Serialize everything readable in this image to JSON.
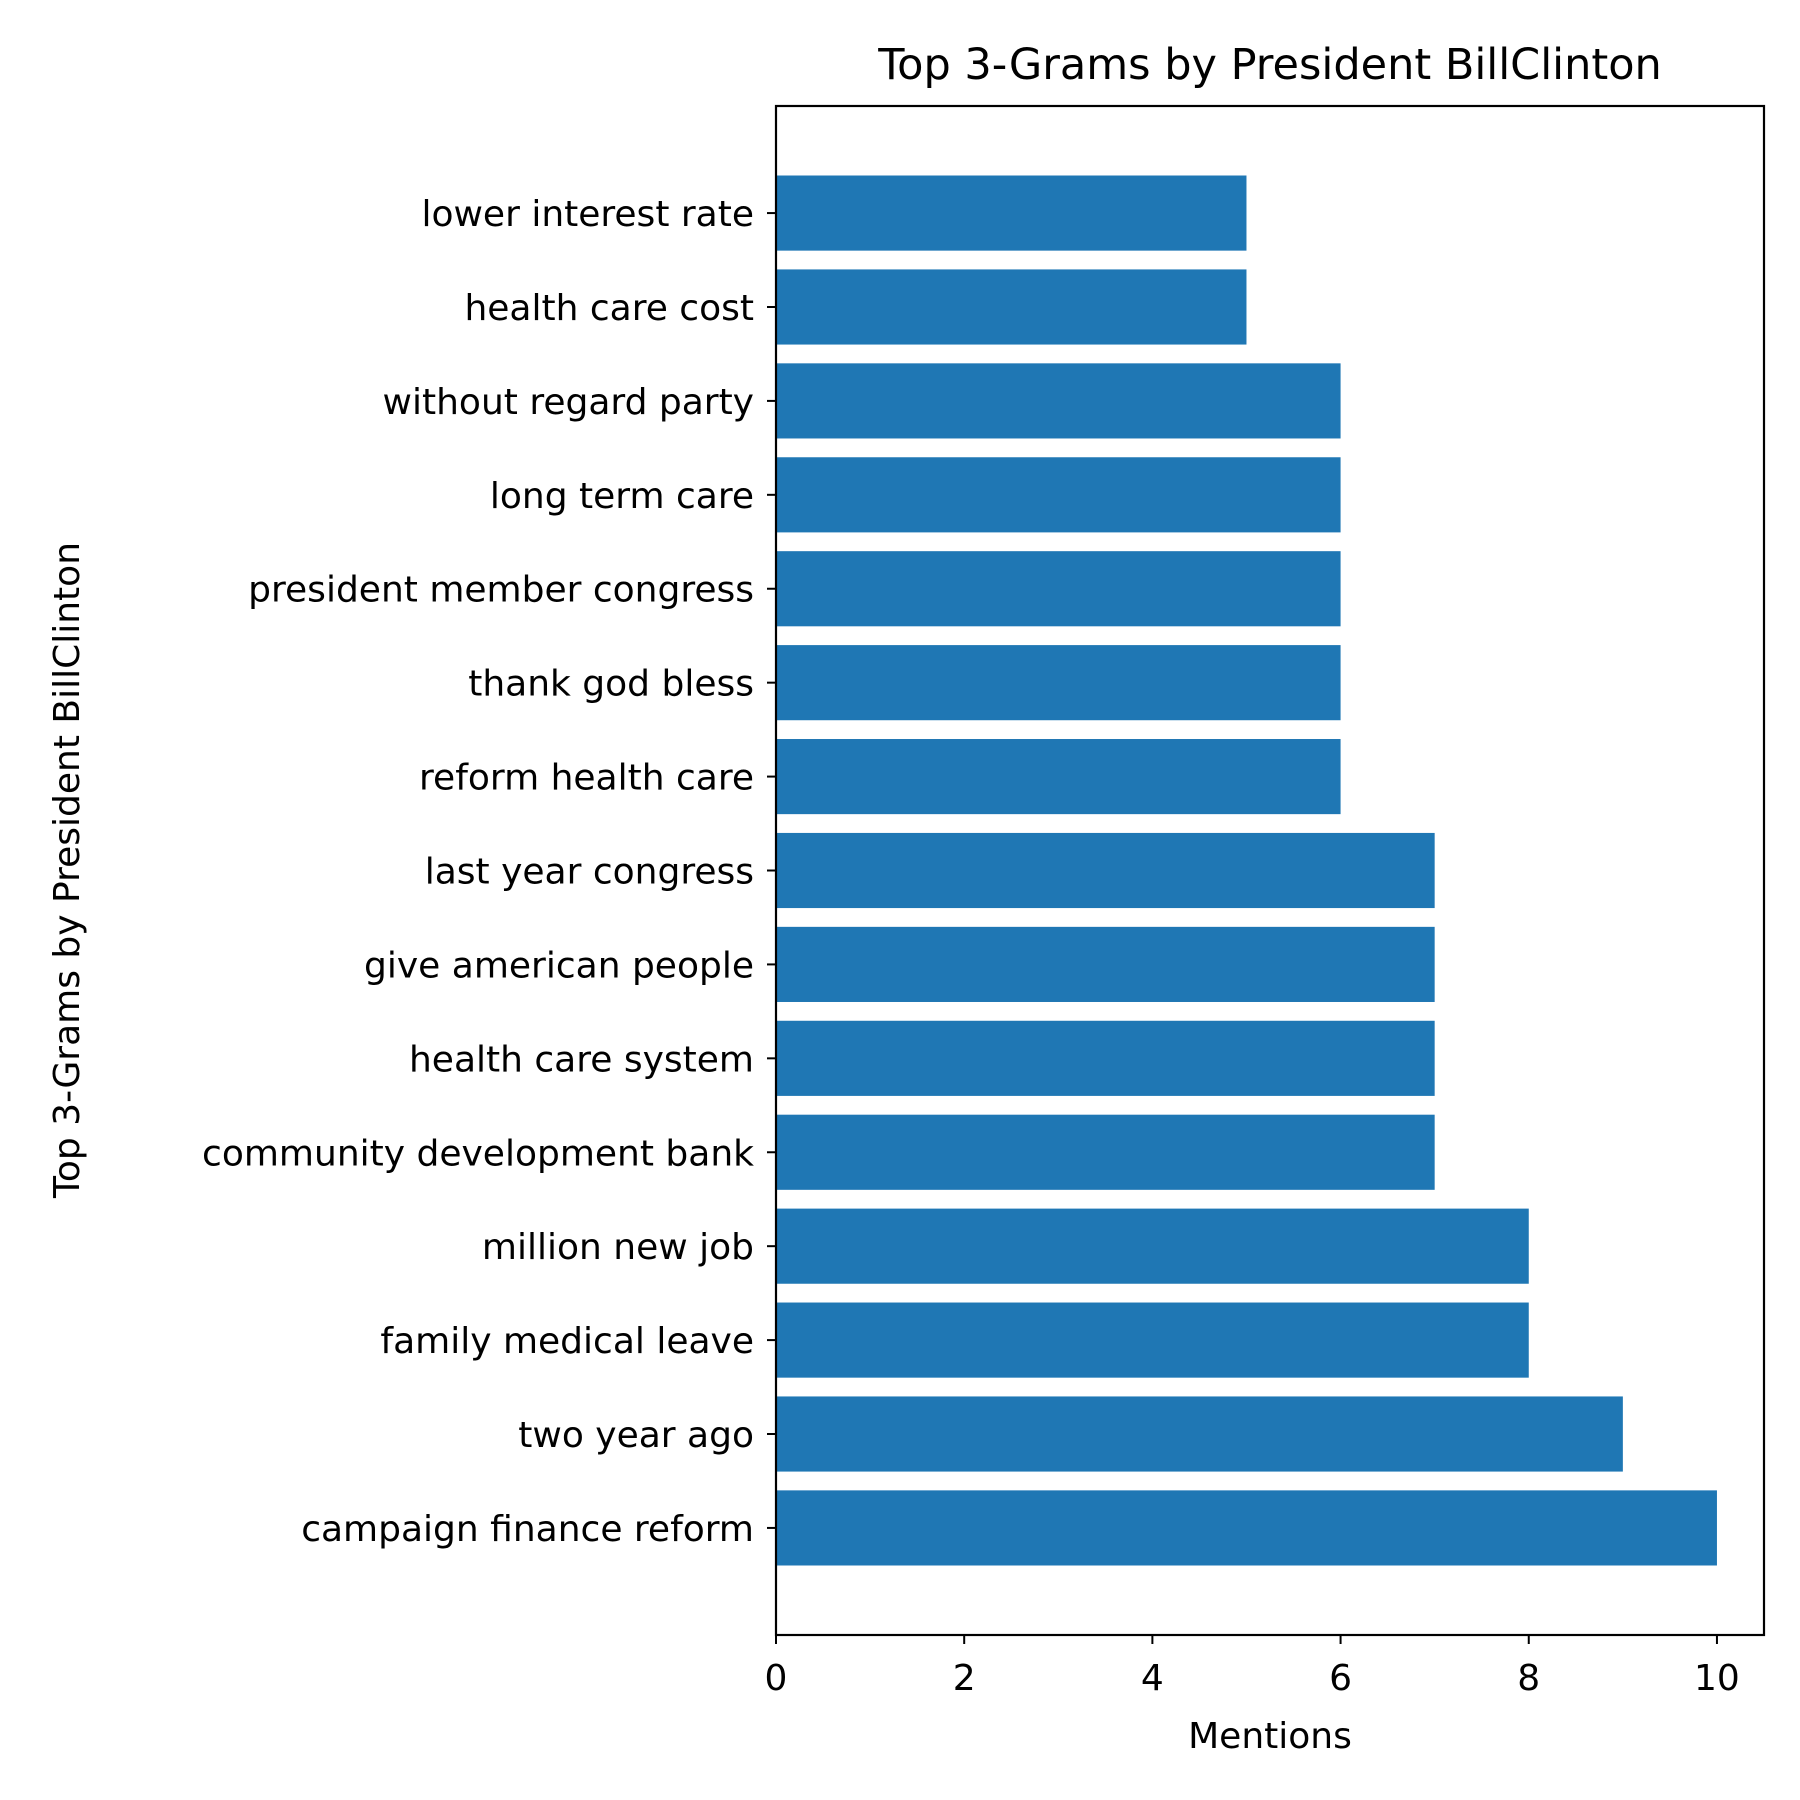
{
  "chart_data": {
    "type": "bar",
    "orientation": "horizontal",
    "title": "Top 3-Grams by President BillClinton",
    "xlabel": "Mentions",
    "ylabel": "Top 3-Grams by President BillClinton",
    "xlim": [
      0,
      10.5
    ],
    "xticks": [
      0,
      2,
      4,
      6,
      8,
      10
    ],
    "grid": false,
    "bar_color": "#1f77b4",
    "categories": [
      "campaign finance reform",
      "two year ago",
      "family medical leave",
      "million new job",
      "community development bank",
      "health care system",
      "give american people",
      "last year congress",
      "reform health care",
      "thank god bless",
      "president member congress",
      "long term care",
      "without regard party",
      "health care cost",
      "lower interest rate"
    ],
    "values": [
      10,
      9,
      8,
      8,
      7,
      7,
      7,
      7,
      6,
      6,
      6,
      6,
      6,
      5,
      5
    ]
  }
}
